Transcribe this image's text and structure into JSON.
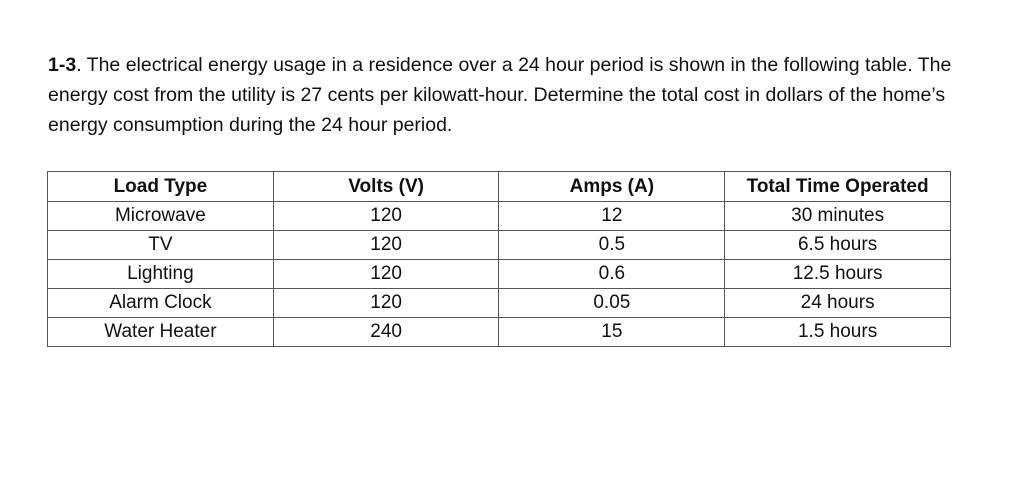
{
  "problem": {
    "number": "1-3",
    "text": ". The electrical energy usage in a residence over a 24 hour period is shown in the following table. The energy cost from the utility is 27 cents per kilowatt-hour. Determine the total cost in dollars of the home’s energy consumption during the 24 hour period."
  },
  "table": {
    "headers": [
      "Load Type",
      "Volts (V)",
      "Amps (A)",
      "Total Time Operated"
    ],
    "rows": [
      [
        "Microwave",
        "120",
        "12",
        "30 minutes"
      ],
      [
        "TV",
        "120",
        "0.5",
        "6.5 hours"
      ],
      [
        "Lighting",
        "120",
        "0.6",
        "12.5 hours"
      ],
      [
        "Alarm Clock",
        "120",
        "0.05",
        "24 hours"
      ],
      [
        "Water Heater",
        "240",
        "15",
        "1.5 hours"
      ]
    ]
  }
}
